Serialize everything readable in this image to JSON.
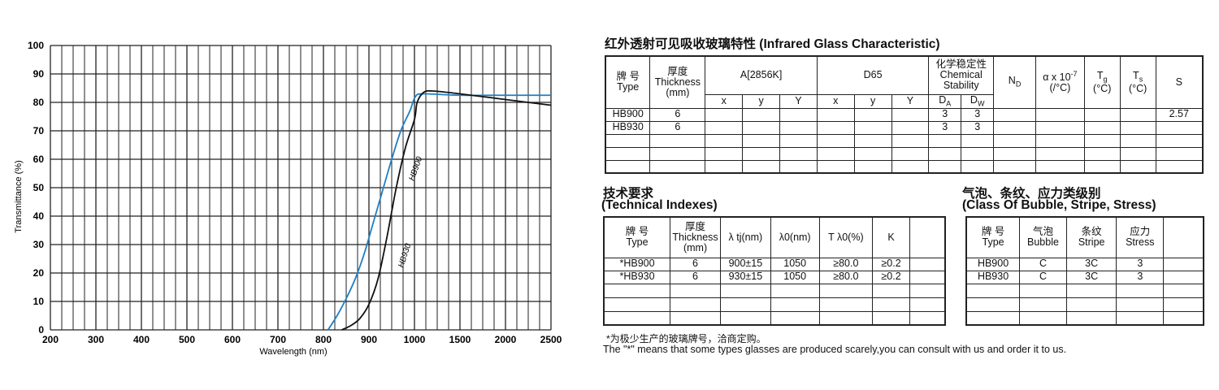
{
  "chart_data": {
    "type": "line",
    "ylabel": "Transmittance (%)",
    "xlabel": "Wavelength (nm)",
    "x_ticks": [
      "200",
      "300",
      "400",
      "500",
      "600",
      "700",
      "800",
      "900",
      "1000",
      "1500",
      "2000",
      "2500"
    ],
    "y_ticks": [
      "0",
      "10",
      "20",
      "30",
      "40",
      "50",
      "60",
      "70",
      "80",
      "90",
      "100"
    ],
    "ylim": [
      0,
      100
    ],
    "grid": true,
    "series": [
      {
        "name": "HB900",
        "color": "#1f7ec4",
        "x": [
          810,
          830,
          850,
          870,
          890,
          910,
          930,
          950,
          970,
          990,
          1010,
          1100,
          1500,
          2000,
          2500
        ],
        "y": [
          0,
          5,
          11,
          18,
          27,
          38,
          49,
          60,
          70,
          77,
          82,
          83,
          82.5,
          82.5,
          82.5
        ]
      },
      {
        "name": "HB930",
        "color": "#111111",
        "x": [
          840,
          860,
          880,
          900,
          920,
          940,
          960,
          980,
          1000,
          1030,
          1100,
          1200,
          1500,
          2000,
          2500
        ],
        "y": [
          0,
          1.5,
          4,
          9,
          18,
          33,
          50,
          64,
          74,
          80,
          83.5,
          84,
          83,
          81,
          79
        ]
      }
    ]
  },
  "infrared": {
    "title": "红外透射可见吸收玻璃特性 (Infrared Glass Characteristic)",
    "hdr_type": "牌 号\nType",
    "hdr_thickness": "厚度\nThickness\n(mm)",
    "hdr_a": "A[2856K]",
    "hdr_d65": "D65",
    "hdr_chem": "化学稳定性\nChemical\nStability",
    "hdr_nd": "N",
    "hdr_nd_sub": "D",
    "hdr_alpha": "α x 10",
    "hdr_alpha_sup": "-7",
    "hdr_alpha_unit": "(/°C)",
    "hdr_tg": "T",
    "hdr_tg_sub": "g",
    "hdr_tg_unit": "(°C)",
    "hdr_ts": "T",
    "hdr_ts_sub": "s",
    "hdr_ts_unit": "(°C)",
    "hdr_s": "S",
    "sub_x": "x",
    "sub_y": "y",
    "sub_Y": "Y",
    "sub_da": "D",
    "sub_da_sub": "A",
    "sub_dw": "D",
    "sub_dw_sub": "W",
    "rows": [
      {
        "type": "HB900",
        "thickness": "6",
        "da": "3",
        "dw": "3",
        "s": "2.57"
      },
      {
        "type": "HB930",
        "thickness": "6",
        "da": "3",
        "dw": "3",
        "s": ""
      }
    ]
  },
  "technical": {
    "title_cn": "技术要求",
    "title_en": "(Technical Indexes)",
    "hdr_type": "牌 号\nType",
    "hdr_thickness": "厚度\nThickness\n(mm)",
    "hdr_ltj": "λ tj(nm)",
    "hdr_l0": "λ0(nm)",
    "hdr_tl0": "T λ0(%)",
    "hdr_k": "K",
    "rows": [
      {
        "type": "*HB900",
        "thickness": "6",
        "ltj": "900±15",
        "l0": "1050",
        "tl0": "≥80.0",
        "k": "≥0.2"
      },
      {
        "type": "*HB930",
        "thickness": "6",
        "ltj": "930±15",
        "l0": "1050",
        "tl0": "≥80.0",
        "k": "≥0.2"
      }
    ]
  },
  "bubble": {
    "title_cn": "气泡、条纹、应力类级别",
    "title_en": "(Class Of Bubble, Stripe, Stress)",
    "hdr_type": "牌 号\nType",
    "hdr_bubble": "气泡\nBubble",
    "hdr_stripe": "条纹\nStripe",
    "hdr_stress": "应力\nStress",
    "rows": [
      {
        "type": "HB900",
        "bubble": "C",
        "stripe": "3C",
        "stress": "3"
      },
      {
        "type": "HB930",
        "bubble": "C",
        "stripe": "3C",
        "stress": "3"
      }
    ]
  },
  "notes": {
    "cn": "*为极少生产的玻璃牌号，洽商定购。",
    "en": "The \"*\" means that some types glasses are produced scarely,you can consult with us and order it to us."
  }
}
